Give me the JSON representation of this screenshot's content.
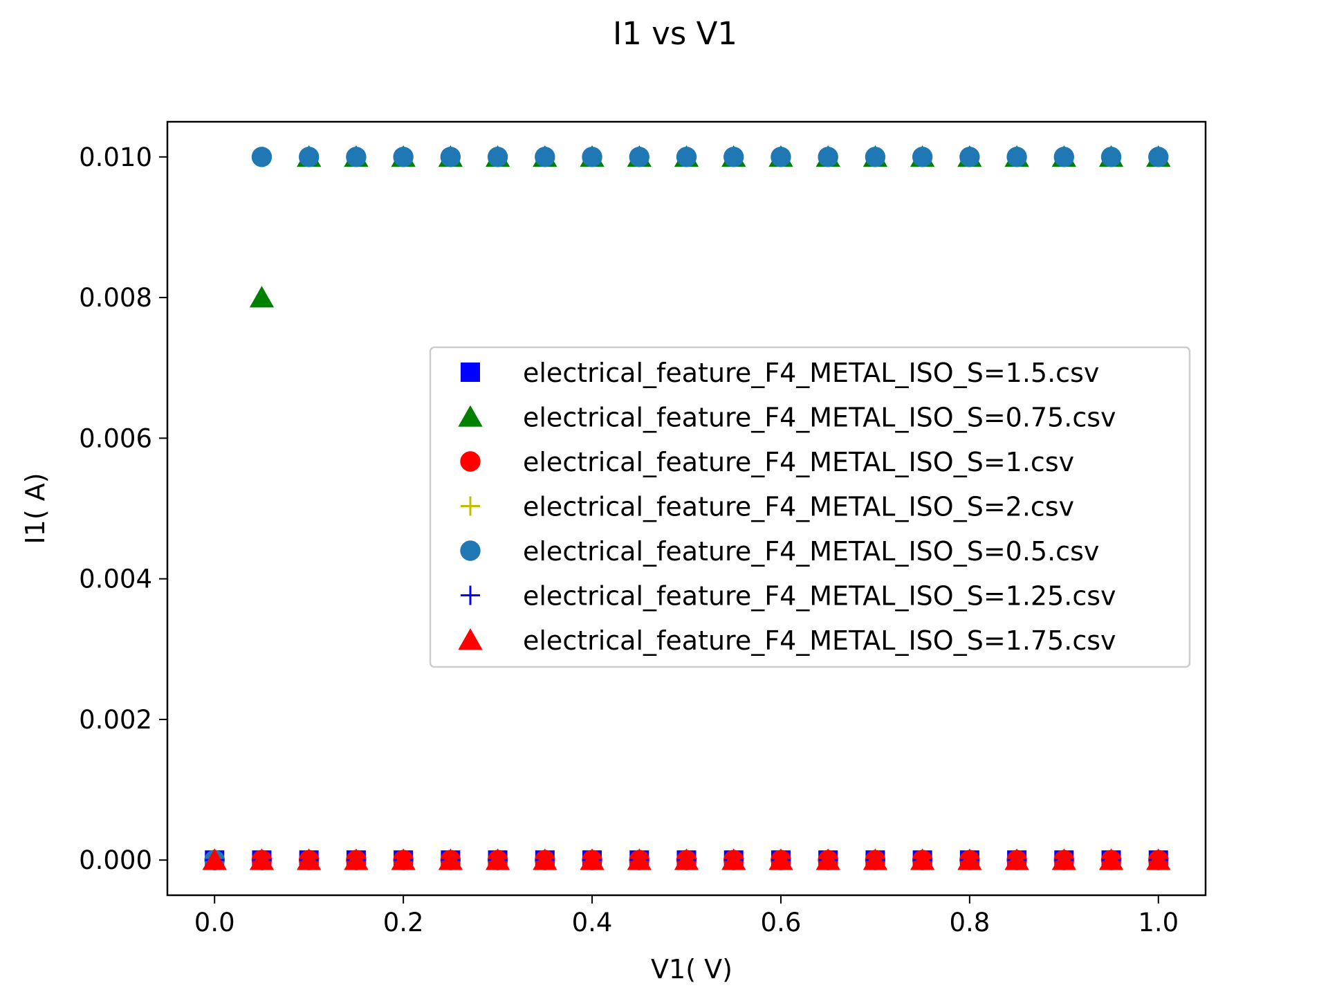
{
  "chart_data": {
    "type": "scatter",
    "title": "I1 vs V1",
    "xlabel": "V1( V)",
    "ylabel": "I1( A)",
    "xlim": [
      -0.05,
      1.05
    ],
    "ylim": [
      -0.0005,
      0.0105
    ],
    "x_ticks": [
      0.0,
      0.2,
      0.4,
      0.6,
      0.8,
      1.0
    ],
    "x_tick_labels": [
      "0.0",
      "0.2",
      "0.4",
      "0.6",
      "0.8",
      "1.0"
    ],
    "y_ticks": [
      0.0,
      0.002,
      0.004,
      0.006,
      0.008,
      0.01
    ],
    "y_tick_labels": [
      "0.000",
      "0.002",
      "0.004",
      "0.006",
      "0.008",
      "0.010"
    ],
    "grid": false,
    "legend_position": "center-right",
    "x": [
      0.0,
      0.05,
      0.1,
      0.15,
      0.2,
      0.25,
      0.3,
      0.35,
      0.4,
      0.45,
      0.5,
      0.55,
      0.6,
      0.65,
      0.7,
      0.75,
      0.8,
      0.85,
      0.9,
      0.95,
      1.0
    ],
    "series": [
      {
        "name": "electrical_feature_F4_METAL_ISO_S=1.5.csv",
        "marker": "square",
        "color": "#0000ff",
        "values": [
          0,
          0,
          0,
          0,
          0,
          0,
          0,
          0,
          0,
          0,
          0,
          0,
          0,
          0,
          0,
          0,
          0,
          0,
          0,
          0,
          0
        ]
      },
      {
        "name": "electrical_feature_F4_METAL_ISO_S=0.75.csv",
        "marker": "triangle",
        "color": "#008000",
        "values": [
          0,
          0.008,
          0.01,
          0.01,
          0.01,
          0.01,
          0.01,
          0.01,
          0.01,
          0.01,
          0.01,
          0.01,
          0.01,
          0.01,
          0.01,
          0.01,
          0.01,
          0.01,
          0.01,
          0.01,
          0.01
        ]
      },
      {
        "name": "electrical_feature_F4_METAL_ISO_S=1.csv",
        "marker": "circle",
        "color": "#ff0000",
        "values": [
          0,
          0,
          0,
          0,
          0,
          0,
          0,
          0,
          0,
          0,
          0,
          0,
          0,
          0,
          0,
          0,
          0,
          0,
          0,
          0,
          0
        ]
      },
      {
        "name": "electrical_feature_F4_METAL_ISO_S=2.csv",
        "marker": "plus",
        "color": "#bfbf00",
        "values": [
          0,
          0,
          0,
          0,
          0,
          0,
          0,
          0,
          0,
          0,
          0,
          0,
          0,
          0,
          0,
          0,
          0,
          0,
          0,
          0,
          0
        ]
      },
      {
        "name": "electrical_feature_F4_METAL_ISO_S=0.5.csv",
        "marker": "circle",
        "color": "#1f77b4",
        "values": [
          0,
          0.01,
          0.01,
          0.01,
          0.01,
          0.01,
          0.01,
          0.01,
          0.01,
          0.01,
          0.01,
          0.01,
          0.01,
          0.01,
          0.01,
          0.01,
          0.01,
          0.01,
          0.01,
          0.01,
          0.01
        ]
      },
      {
        "name": "electrical_feature_F4_METAL_ISO_S=1.25.csv",
        "marker": "plus",
        "color": "#0000ff",
        "values": [
          0,
          0,
          0,
          0,
          0,
          0,
          0,
          0,
          0,
          0,
          0,
          0,
          0,
          0,
          0,
          0,
          0,
          0,
          0,
          0,
          0
        ]
      },
      {
        "name": "electrical_feature_F4_METAL_ISO_S=1.75.csv",
        "marker": "triangle",
        "color": "#ff0000",
        "values": [
          0,
          0,
          0,
          0,
          0,
          0,
          0,
          0,
          0,
          0,
          0,
          0,
          0,
          0,
          0,
          0,
          0,
          0,
          0,
          0,
          0
        ]
      }
    ]
  }
}
